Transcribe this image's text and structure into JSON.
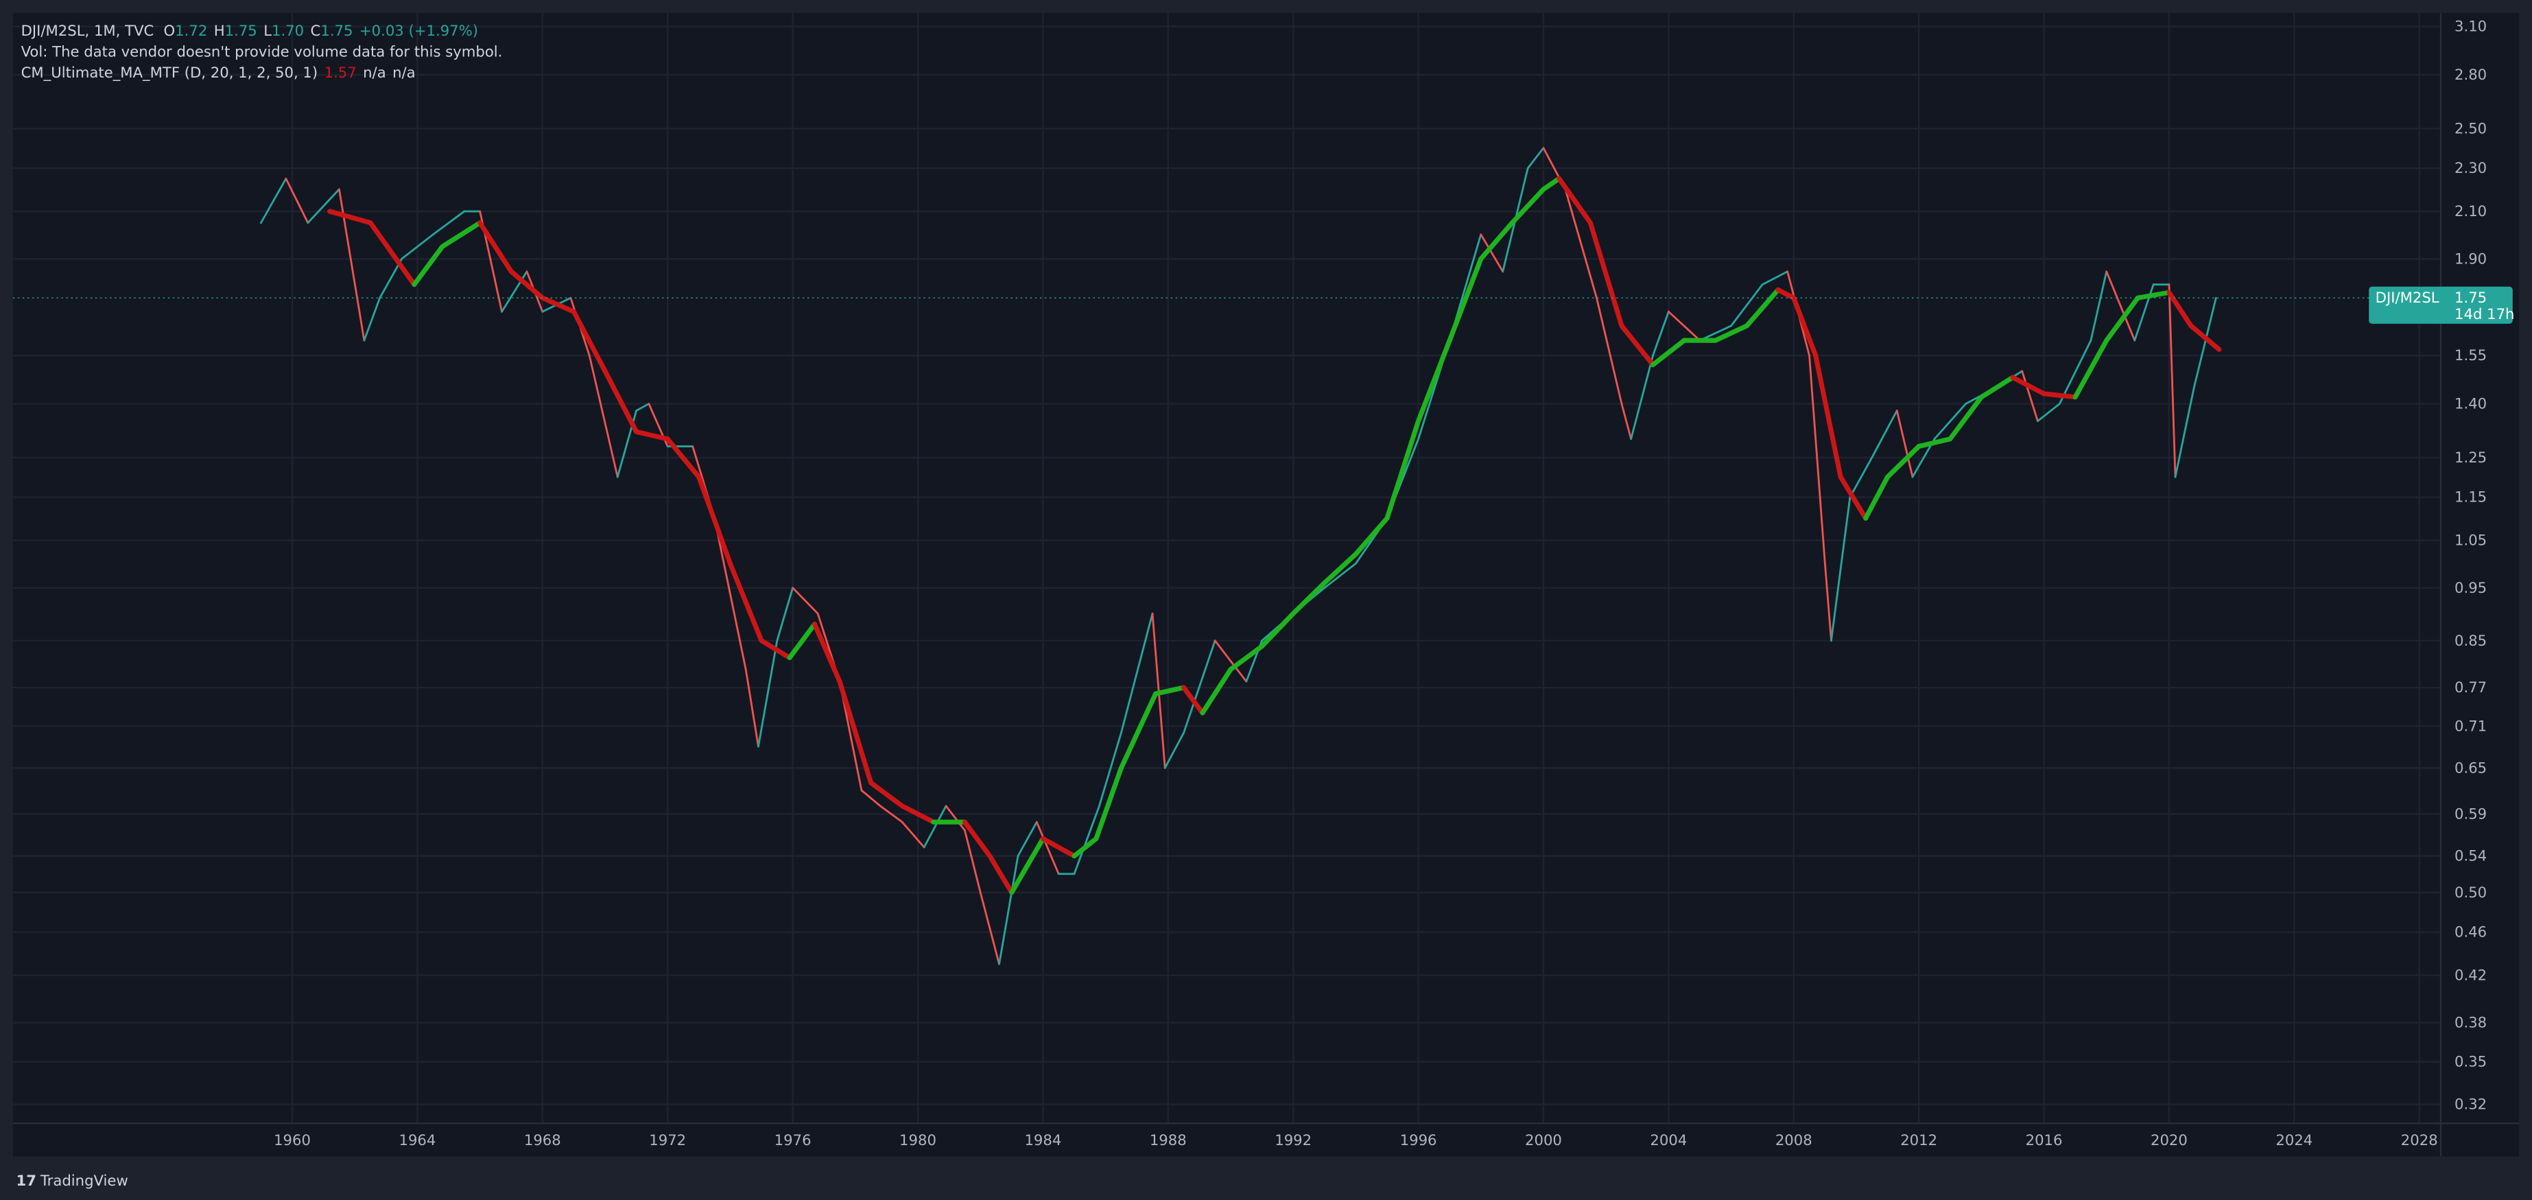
{
  "chart_data": {
    "type": "line",
    "legend_lines": {
      "symbol": "DJI/M2SL, 1M, TVC",
      "ohlc": [
        {
          "label": "O",
          "value": "1.72"
        },
        {
          "label": "H",
          "value": "1.75"
        },
        {
          "label": "L",
          "value": "1.70"
        },
        {
          "label": "C",
          "value": "1.75"
        }
      ],
      "change": "+0.03 (+1.97%)",
      "volume_note": "Vol: The data vendor doesn't provide volume data for this symbol.",
      "indicator": "CM_Ultimate_MA_MTF (D, 20, 1, 2, 50, 1)",
      "indicator_value": "1.57",
      "indicator_extra": [
        "n/a",
        "n/a"
      ]
    },
    "last_price": {
      "symbol": "DJI/M2SL",
      "value": 1.75,
      "countdown": "14d 17h",
      "color": "#26a69a"
    },
    "log_scale": true,
    "grid": true,
    "xlim": [
      1951.07,
      2028.66
    ],
    "xticks": [
      1960,
      1964,
      1968,
      1972,
      1976,
      1980,
      1984,
      1988,
      1992,
      1996,
      2000,
      2004,
      2008,
      2012,
      2016,
      2020,
      2024,
      2028
    ],
    "ylim": [
      0.308,
      3.19
    ],
    "yticks": [
      {
        "value": 0.32,
        "label": "0.32"
      },
      {
        "value": 0.35,
        "label": "0.35"
      },
      {
        "value": 0.38,
        "label": "0.38"
      },
      {
        "value": 0.42,
        "label": "0.42"
      },
      {
        "value": 0.46,
        "label": "0.46"
      },
      {
        "value": 0.5,
        "label": "0.50"
      },
      {
        "value": 0.54,
        "label": "0.54"
      },
      {
        "value": 0.59,
        "label": "0.59"
      },
      {
        "value": 0.65,
        "label": "0.65"
      },
      {
        "value": 0.71,
        "label": "0.71"
      },
      {
        "value": 0.77,
        "label": "0.77"
      },
      {
        "value": 0.85,
        "label": "0.85"
      },
      {
        "value": 0.95,
        "label": "0.95"
      },
      {
        "value": 1.05,
        "label": "1.05"
      },
      {
        "value": 1.15,
        "label": "1.15"
      },
      {
        "value": 1.25,
        "label": "1.25"
      },
      {
        "value": 1.4,
        "label": "1.40"
      },
      {
        "value": 1.55,
        "label": "1.55"
      },
      {
        "value": 1.9,
        "label": "1.90"
      },
      {
        "value": 2.1,
        "label": "2.10"
      },
      {
        "value": 2.3,
        "label": "2.30"
      },
      {
        "value": 2.5,
        "label": "2.50"
      },
      {
        "value": 2.8,
        "label": "2.80"
      },
      {
        "value": 3.1,
        "label": "3.10"
      }
    ],
    "series": [
      {
        "name": "DJI/M2SL",
        "up_color": "#26a69a",
        "down_color": "#ef5350",
        "x": [
          1959.0,
          1959.8,
          1960.5,
          1961.5,
          1962.3,
          1962.8,
          1963.5,
          1964.5,
          1965.5,
          1966.0,
          1966.7,
          1967.5,
          1968.0,
          1968.9,
          1969.5,
          1970.4,
          1971.0,
          1971.4,
          1972.0,
          1972.8,
          1973.5,
          1974.5,
          1974.9,
          1975.5,
          1976.0,
          1976.8,
          1977.5,
          1978.2,
          1978.8,
          1979.5,
          1980.2,
          1980.9,
          1981.5,
          1982.0,
          1982.6,
          1983.2,
          1983.8,
          1984.5,
          1985.0,
          1985.8,
          1986.5,
          1987.5,
          1987.9,
          1988.5,
          1989.5,
          1990.5,
          1991.0,
          1992.0,
          1993.0,
          1994.0,
          1995.0,
          1996.0,
          1997.0,
          1998.0,
          1998.7,
          1999.5,
          2000.0,
          2000.7,
          2001.7,
          2002.5,
          2002.8,
          2003.5,
          2004.0,
          2005.0,
          2006.0,
          2007.0,
          2007.8,
          2008.5,
          2009.0,
          2009.2,
          2009.8,
          2010.5,
          2011.3,
          2011.8,
          2012.5,
          2013.5,
          2014.5,
          2015.3,
          2015.8,
          2016.5,
          2017.5,
          2018.0,
          2018.9,
          2019.5,
          2020.0,
          2020.2,
          2020.8,
          2021.5
        ],
        "values": [
          2.05,
          2.25,
          2.05,
          2.2,
          1.6,
          1.75,
          1.9,
          2.0,
          2.1,
          2.1,
          1.7,
          1.85,
          1.7,
          1.75,
          1.55,
          1.2,
          1.38,
          1.4,
          1.28,
          1.28,
          1.1,
          0.8,
          0.68,
          0.85,
          0.95,
          0.9,
          0.78,
          0.62,
          0.6,
          0.58,
          0.55,
          0.6,
          0.57,
          0.5,
          0.43,
          0.54,
          0.58,
          0.52,
          0.52,
          0.6,
          0.7,
          0.9,
          0.65,
          0.7,
          0.85,
          0.78,
          0.85,
          0.9,
          0.95,
          1.0,
          1.1,
          1.3,
          1.6,
          2.0,
          1.85,
          2.3,
          2.4,
          2.2,
          1.75,
          1.4,
          1.3,
          1.55,
          1.7,
          1.6,
          1.65,
          1.8,
          1.85,
          1.55,
          1.0,
          0.85,
          1.15,
          1.25,
          1.38,
          1.2,
          1.3,
          1.4,
          1.45,
          1.5,
          1.35,
          1.4,
          1.6,
          1.85,
          1.6,
          1.8,
          1.8,
          1.2,
          1.45,
          1.75
        ]
      },
      {
        "name": "CM_Ultimate_MA_MTF (D, 20, 1, 2, 50, 1)",
        "up_color": "#1fb31f",
        "down_color": "#cc1616",
        "x": [
          1961.2,
          1962.5,
          1963.9,
          1964.8,
          1966.0,
          1967.0,
          1968.0,
          1969.0,
          1970.0,
          1971.0,
          1972.0,
          1973.0,
          1974.0,
          1975.0,
          1975.9,
          1976.7,
          1977.5,
          1978.5,
          1979.5,
          1980.5,
          1981.5,
          1982.3,
          1983.0,
          1984.0,
          1985.0,
          1985.7,
          1986.5,
          1987.6,
          1988.5,
          1989.1,
          1990.0,
          1991.0,
          1992.0,
          1993.0,
          1994.0,
          1995.0,
          1996.0,
          1997.0,
          1998.0,
          1999.0,
          2000.0,
          2000.5,
          2001.5,
          2002.5,
          2003.5,
          2004.5,
          2005.5,
          2006.5,
          2007.5,
          2008.0,
          2008.7,
          2009.5,
          2010.3,
          2011.0,
          2012.0,
          2013.0,
          2014.0,
          2015.0,
          2016.0,
          2017.0,
          2018.0,
          2019.0,
          2020.0,
          2020.7,
          2021.6
        ],
        "values": [
          2.1,
          2.05,
          1.8,
          1.95,
          2.05,
          1.85,
          1.75,
          1.7,
          1.5,
          1.32,
          1.3,
          1.2,
          1.0,
          0.85,
          0.82,
          0.88,
          0.78,
          0.63,
          0.6,
          0.58,
          0.58,
          0.54,
          0.5,
          0.56,
          0.54,
          0.56,
          0.65,
          0.76,
          0.77,
          0.73,
          0.8,
          0.84,
          0.9,
          0.96,
          1.02,
          1.1,
          1.35,
          1.6,
          1.9,
          2.05,
          2.2,
          2.25,
          2.05,
          1.65,
          1.52,
          1.6,
          1.6,
          1.65,
          1.78,
          1.75,
          1.55,
          1.2,
          1.1,
          1.2,
          1.28,
          1.3,
          1.42,
          1.48,
          1.43,
          1.42,
          1.6,
          1.75,
          1.77,
          1.65,
          1.57
        ]
      }
    ],
    "footer": "TradingView"
  }
}
